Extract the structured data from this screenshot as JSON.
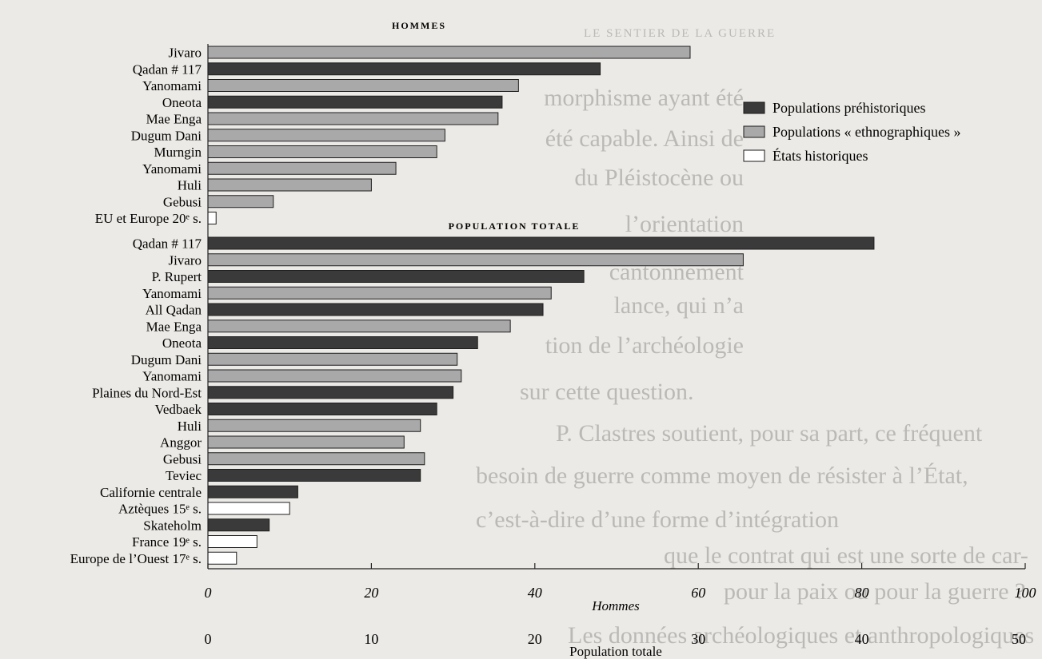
{
  "chart_data": {
    "type": "bar",
    "orientation": "horizontal",
    "legend": {
      "placement": "top-right",
      "entries": [
        {
          "key": "prehistoric",
          "label": "Populations préhistoriques",
          "color": "#3a3a3a"
        },
        {
          "key": "ethnographic",
          "label": "Populations « ethnographiques »",
          "color": "#a9a9a9"
        },
        {
          "key": "historic",
          "label": "États historiques",
          "color": "#ffffff"
        }
      ]
    },
    "panels": [
      {
        "title": "HOMMES",
        "bars": [
          {
            "label": "Jivaro",
            "value": 59,
            "group": "ethnographic"
          },
          {
            "label": "Qadan # 117",
            "value": 48,
            "group": "prehistoric"
          },
          {
            "label": "Yanomami",
            "value": 38,
            "group": "ethnographic"
          },
          {
            "label": "Oneota",
            "value": 36,
            "group": "prehistoric"
          },
          {
            "label": "Mae Enga",
            "value": 35.5,
            "group": "ethnographic"
          },
          {
            "label": "Dugum Dani",
            "value": 29,
            "group": "ethnographic"
          },
          {
            "label": "Murngin",
            "value": 28,
            "group": "ethnographic"
          },
          {
            "label": "Yanomami",
            "value": 23,
            "group": "ethnographic"
          },
          {
            "label": "Huli",
            "value": 20,
            "group": "ethnographic"
          },
          {
            "label": "Gebusi",
            "value": 8,
            "group": "ethnographic"
          },
          {
            "label": "EU et Europe 20ᵉ s.",
            "value": 1,
            "group": "historic"
          }
        ]
      },
      {
        "title": "POPULATION TOTALE",
        "bars": [
          {
            "label": "Qadan # 117",
            "value": 81.5,
            "group": "prehistoric"
          },
          {
            "label": "Jivaro",
            "value": 65.5,
            "group": "ethnographic"
          },
          {
            "label": "P. Rupert",
            "value": 46,
            "group": "prehistoric"
          },
          {
            "label": "Yanomami",
            "value": 42,
            "group": "ethnographic"
          },
          {
            "label": "All Qadan",
            "value": 41,
            "group": "prehistoric"
          },
          {
            "label": "Mae Enga",
            "value": 37,
            "group": "ethnographic"
          },
          {
            "label": "Oneota",
            "value": 33,
            "group": "prehistoric"
          },
          {
            "label": "Dugum Dani",
            "value": 30.5,
            "group": "ethnographic"
          },
          {
            "label": "Yanomami",
            "value": 31,
            "group": "ethnographic"
          },
          {
            "label": "Plaines du Nord-Est",
            "value": 30,
            "group": "prehistoric"
          },
          {
            "label": "Vedbaek",
            "value": 28,
            "group": "prehistoric"
          },
          {
            "label": "Huli",
            "value": 26,
            "group": "ethnographic"
          },
          {
            "label": "Anggor",
            "value": 24,
            "group": "ethnographic"
          },
          {
            "label": "Gebusi",
            "value": 26.5,
            "group": "ethnographic"
          },
          {
            "label": "Teviec",
            "value": 26,
            "group": "prehistoric"
          },
          {
            "label": "Californie centrale",
            "value": 11,
            "group": "prehistoric"
          },
          {
            "label": "Aztèques 15ᵉ s.",
            "value": 10,
            "group": "historic"
          },
          {
            "label": "Skateholm",
            "value": 7.5,
            "group": "prehistoric"
          },
          {
            "label": "France 19ᵉ s.",
            "value": 6,
            "group": "historic"
          },
          {
            "label": "Europe de l’Ouest 17ᵉ s.",
            "value": 3.5,
            "group": "historic"
          }
        ]
      }
    ],
    "x_axis_primary": {
      "label": "Hommes",
      "range": [
        0,
        100
      ],
      "ticks": [
        "0",
        "20",
        "40",
        "60",
        "80",
        "100"
      ]
    },
    "x_axis_secondary": {
      "label": "Population totale",
      "range": [
        0,
        50
      ],
      "ticks": [
        "0",
        "10",
        "20",
        "30",
        "40",
        "50"
      ]
    },
    "background_text": {
      "running_head": "LE SENTIER DE LA GUERRE",
      "lines": [
        "morphisme ayant été",
        "été capable. Ainsi de",
        "du Pléistocène ou",
        "l’orientation",
        "cantonnement",
        "lance, qui n’a",
        "tion de l’archéologie",
        "sur cette question.",
        "P. Clastres soutient, pour sa part, ce fréquent",
        "besoin de guerre comme moyen de résister à l’État,",
        "c’est-à-dire d’une forme d’intégration",
        "que le contrat qui est une sorte de car-",
        "pour la paix ou pour la guerre ?",
        "Les données archéologiques et anthropologiques"
      ]
    }
  }
}
